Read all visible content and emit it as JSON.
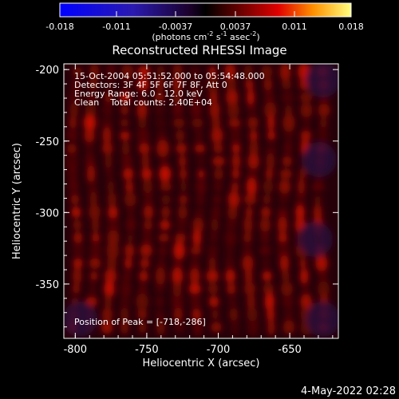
{
  "chart_data": {
    "type": "heatmap",
    "title": "Reconstructed RHESSI Image",
    "colorbar": {
      "tick_labels": [
        "-0.018",
        "-0.011",
        "-0.0037",
        "0.0037",
        "0.011",
        "0.018"
      ],
      "tick_values": [
        -0.018,
        -0.011,
        -0.0037,
        0.0037,
        0.011,
        0.018
      ],
      "range": [
        -0.018,
        0.018
      ],
      "units_main": "(photons cm",
      "units_sup1": "-2",
      "units_mid": " s",
      "units_sup2": "-1",
      "units_tail": " asec",
      "units_sup3": "-2",
      "units_end": ")"
    },
    "annotations": [
      "15-Oct-2004 05:51:52.000 to 05:54:48.000",
      "Detectors: 3F 4F 5F 6F 7F 8F, Att 0",
      "Energy Range: 6.0 - 12.0 keV",
      "Clean    Total counts: 2.40E+04"
    ],
    "peak_label": "Position of Peak = [-718,-286]",
    "peak_position": [
      -718,
      -286
    ],
    "xlabel": "Heliocentric X (arcsec)",
    "ylabel": "Heliocentric Y (arcsec)",
    "x_ticks": [
      "-800",
      "-750",
      "-700",
      "-650"
    ],
    "x_tick_values": [
      -800,
      -750,
      -700,
      -650
    ],
    "y_ticks": [
      "-200",
      "-250",
      "-300",
      "-350"
    ],
    "y_tick_values": [
      -200,
      -250,
      -300,
      -350
    ],
    "xlim": [
      -808,
      -616
    ],
    "ylim": [
      -388,
      -196
    ],
    "sources": [
      {
        "x": -718,
        "y": -286,
        "value": 0.018
      },
      {
        "x": -684,
        "y": -319,
        "value": 0.009
      }
    ],
    "grid": false
  },
  "footer": {
    "date": "4-May-2022 02:28"
  },
  "colors": {
    "background": "#000000",
    "text": "#ffffff"
  }
}
